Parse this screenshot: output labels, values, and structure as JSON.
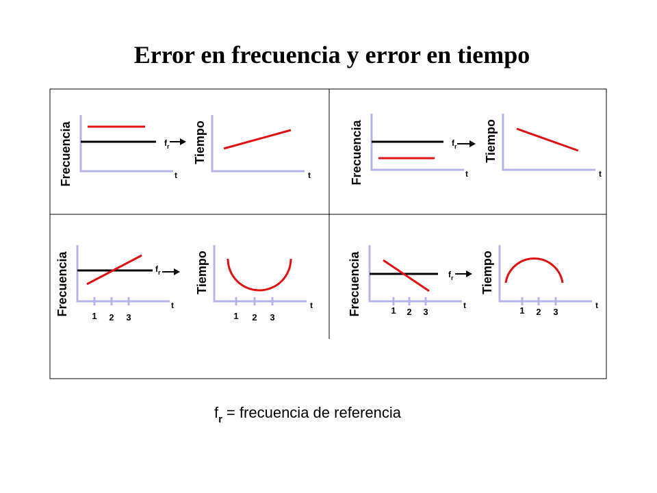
{
  "title": "Error en frecuencia y error en tiempo",
  "panels": [
    {
      "freq_axis": "Frecuencia",
      "freq_t": "t",
      "fr": {
        "f": "f",
        "r": "r"
      },
      "time_axis": "Tiempo",
      "time_t": "t"
    },
    {
      "freq_axis": "Frecuencia",
      "freq_t": "t",
      "fr": {
        "f": "f",
        "r": "r"
      },
      "time_axis": "Tiempo",
      "time_t": "t"
    },
    {
      "freq_axis": "Frecuencia",
      "freq_t": "t",
      "fr": {
        "f": "f",
        "r": "r"
      },
      "time_axis": "Tiempo",
      "time_t": "t",
      "freq_ticks": [
        "1",
        "2",
        "3"
      ],
      "time_ticks": [
        "1",
        "2",
        "3"
      ]
    },
    {
      "freq_axis": "Frecuencia",
      "freq_t": "t",
      "fr": {
        "f": "f",
        "r": "r"
      },
      "time_axis": "Tiempo",
      "time_t": "t",
      "freq_ticks": [
        "1",
        "2",
        "3"
      ],
      "time_ticks": [
        "1",
        "2",
        "3"
      ]
    }
  ],
  "footer": {
    "f": "f",
    "r": "r",
    "text": "= frecuencia de referencia"
  }
}
